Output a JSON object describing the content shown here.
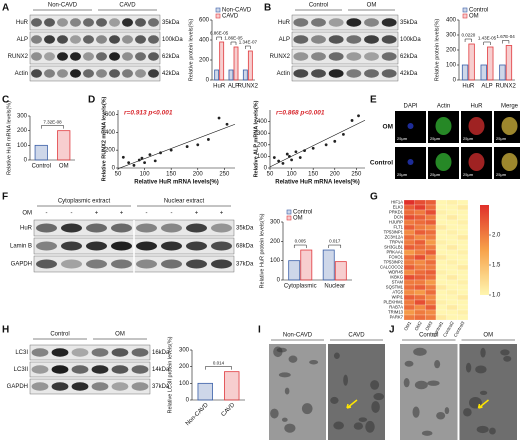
{
  "figure": {
    "A": {
      "letter": "A",
      "groups": [
        "Non-CAVD",
        "CAVD"
      ],
      "rows": [
        [
          "HuR",
          "35kDa"
        ],
        [
          "ALP",
          "100kDa"
        ],
        [
          "RUNX2",
          "62kDa"
        ],
        [
          "Actin",
          "42kDa"
        ]
      ]
    },
    "B": {
      "letter": "B",
      "groups": [
        "Control",
        "OM"
      ],
      "rows": [
        [
          "HuR",
          "35kDa"
        ],
        [
          "ALP",
          "100kDa"
        ],
        [
          "RUNX2",
          "62kDa"
        ],
        [
          "Actin",
          "42kDa"
        ]
      ]
    },
    "C": {
      "letter": "C"
    },
    "D": {
      "letter": "D"
    },
    "E": {
      "letter": "E",
      "columns": [
        "DAPI",
        "Actin",
        "HuR",
        "Merge"
      ],
      "rows": [
        "OM",
        "Control"
      ],
      "scale": "25μm"
    },
    "F": {
      "letter": "F",
      "groups": [
        "Cytoplasmic extract",
        "Nuclear extract"
      ],
      "om_label": "OM",
      "om_signs": [
        "-",
        "-",
        "+",
        "+",
        "-",
        "-",
        "+",
        "+"
      ],
      "rows": [
        [
          "HuR",
          "35kDa"
        ],
        [
          "Lamin B",
          "68kDa"
        ],
        [
          "GAPDH",
          "37kDa"
        ]
      ]
    },
    "G": {
      "letter": "G"
    },
    "H": {
      "letter": "H",
      "groups": [
        "Control",
        "OM"
      ],
      "rows": [
        [
          "LC3I",
          "16kDa"
        ],
        [
          "LC3II",
          "14kDa"
        ],
        [
          "GAPDH",
          "37kDa"
        ]
      ]
    },
    "I": {
      "letter": "I",
      "groups": [
        "Non-CAVD",
        "CAVD"
      ]
    },
    "J": {
      "letter": "J",
      "groups": [
        "Control",
        "OM"
      ]
    }
  },
  "chart_data": [
    {
      "type": "bar",
      "ylabel": "Relative protein levels(%)",
      "categories": [
        "HuR",
        "ALP",
        "RUNX2"
      ],
      "series": [
        {
          "name": "Non-CAVD",
          "color": "#3a5fa8",
          "values": [
            100,
            100,
            100
          ]
        },
        {
          "name": "CAVD",
          "color": "#e03a3e",
          "values": [
            380,
            330,
            290
          ]
        }
      ],
      "ylim": [
        0,
        600
      ],
      "yticks": [
        0,
        200,
        400,
        600
      ],
      "annotations": [
        "6.86E-05",
        "1.86E-05",
        "1.34E-07"
      ]
    },
    {
      "type": "bar",
      "ylabel": "Relative protein levels(%)",
      "categories": [
        "HuR",
        "ALP",
        "RUNX2"
      ],
      "series": [
        {
          "name": "Control",
          "color": "#3a5fa8",
          "values": [
            100,
            100,
            100
          ]
        },
        {
          "name": "OM",
          "color": "#e03a3e",
          "values": [
            240,
            220,
            230
          ]
        }
      ],
      "ylim": [
        0,
        400
      ],
      "yticks": [
        0,
        100,
        200,
        300,
        400
      ],
      "annotations": [
        "0.0220",
        "1.43E-05",
        "1.67E-04"
      ]
    },
    {
      "type": "bar",
      "ylabel": "Relative HuR mRNA levels(%)",
      "categories": [
        "Control",
        "OM"
      ],
      "values": [
        100,
        200
      ],
      "colors": [
        "#3a5fa8",
        "#e03a3e"
      ],
      "ylim": [
        0,
        300
      ],
      "yticks": [
        0,
        100,
        200,
        300
      ],
      "annotation": "7.32E-08"
    },
    {
      "type": "scatter",
      "xlabel": "Relative HuR mRNA levels(%)",
      "ylabel": "Relative RUNX2 mRNA levels(%)",
      "annotation": "r=0.913 p<0.001",
      "x": [
        60,
        70,
        80,
        90,
        95,
        100,
        110,
        120,
        130,
        150,
        180,
        200,
        220,
        240,
        255
      ],
      "values": [
        120,
        60,
        30,
        90,
        110,
        60,
        150,
        80,
        170,
        200,
        240,
        260,
        320,
        560,
        490
      ],
      "xlim": [
        50,
        270
      ],
      "ylim": [
        0,
        650
      ],
      "xticks": [
        50,
        100,
        150,
        200,
        250
      ],
      "yticks": [
        0,
        200,
        400,
        600
      ],
      "color": "#222222"
    },
    {
      "type": "scatter",
      "xlabel": "Relative HuR mRNA levels(%)",
      "ylabel": "Relative ALP mRNA levels(%)",
      "annotation": "r=0.868 p<0.001",
      "x": [
        60,
        70,
        80,
        90,
        95,
        100,
        110,
        120,
        130,
        150,
        180,
        200,
        220,
        240,
        255
      ],
      "values": [
        90,
        60,
        40,
        120,
        100,
        70,
        140,
        90,
        150,
        170,
        200,
        230,
        290,
        410,
        450
      ],
      "xlim": [
        50,
        270
      ],
      "ylim": [
        0,
        500
      ],
      "xticks": [
        50,
        100,
        150,
        200,
        250
      ],
      "yticks": [
        0,
        100,
        200,
        300,
        400
      ],
      "color": "#222222"
    },
    {
      "type": "bar",
      "ylabel": "Relative HuR protein levels(%)",
      "categories": [
        "Cytoplasmic",
        "Nuclear"
      ],
      "series": [
        {
          "name": "Control",
          "color": "#3a5fa8",
          "values": [
            100,
            155
          ]
        },
        {
          "name": "OM",
          "color": "#e03a3e",
          "values": [
            155,
            95
          ]
        }
      ],
      "ylim": [
        0,
        300
      ],
      "yticks": [
        0,
        100,
        200,
        300
      ],
      "annotations": [
        "0.005",
        "0.017"
      ]
    },
    {
      "type": "heatmap",
      "rows": [
        "HIF1A",
        "ELK3",
        "PRKD1",
        "DCN",
        "HJURP",
        "FLT1",
        "TP53INP1",
        "ZC3H12A",
        "TRPV4",
        "SH3GLB1",
        "PRKAA1",
        "FOXO1",
        "TP53INP2",
        "CALCOCO2",
        "WDR45",
        "IKBKG",
        "STAM",
        "SQSTM1",
        "ATG5",
        "WIPI1",
        "PLEKHM1",
        "RAB7A",
        "TRIM13",
        "PARK7"
      ],
      "columns": [
        "OM1",
        "OM2",
        "OM3",
        "Control1",
        "Control2",
        "Control3"
      ],
      "values": [
        [
          2.5,
          2.3,
          2.2,
          1.0,
          1.05,
          1.0
        ],
        [
          2.2,
          2.4,
          2.1,
          1.0,
          1.0,
          1.1
        ],
        [
          2.1,
          2.0,
          2.3,
          1.05,
          1.0,
          1.0
        ],
        [
          2.3,
          2.2,
          2.0,
          1.0,
          1.1,
          1.0
        ],
        [
          2.0,
          2.1,
          2.2,
          1.0,
          1.0,
          1.05
        ],
        [
          2.2,
          2.0,
          1.9,
          1.1,
          1.0,
          1.0
        ],
        [
          1.9,
          2.2,
          2.1,
          1.0,
          1.05,
          1.0
        ],
        [
          2.1,
          1.9,
          2.0,
          1.0,
          1.0,
          1.1
        ],
        [
          2.0,
          2.2,
          1.8,
          1.05,
          1.0,
          1.0
        ],
        [
          2.2,
          2.1,
          2.0,
          1.0,
          1.1,
          1.0
        ],
        [
          1.8,
          2.0,
          2.2,
          1.0,
          1.0,
          1.05
        ],
        [
          2.1,
          2.3,
          1.9,
          1.1,
          1.0,
          1.0
        ],
        [
          2.0,
          1.9,
          2.1,
          1.0,
          1.05,
          1.0
        ],
        [
          2.2,
          2.0,
          2.0,
          1.0,
          1.0,
          1.1
        ],
        [
          1.9,
          2.1,
          2.2,
          1.05,
          1.0,
          1.0
        ],
        [
          2.3,
          2.2,
          2.1,
          1.0,
          1.1,
          1.0
        ],
        [
          2.0,
          2.0,
          1.8,
          1.0,
          1.0,
          1.05
        ],
        [
          2.1,
          2.2,
          2.0,
          1.1,
          1.0,
          1.0
        ],
        [
          1.9,
          1.8,
          2.1,
          1.0,
          1.05,
          1.0
        ],
        [
          2.2,
          2.1,
          1.9,
          1.0,
          1.0,
          1.1
        ],
        [
          2.0,
          2.3,
          2.0,
          1.05,
          1.0,
          1.0
        ],
        [
          2.1,
          1.9,
          2.2,
          1.0,
          1.1,
          1.0
        ],
        [
          1.8,
          2.0,
          1.9,
          1.0,
          1.0,
          1.05
        ],
        [
          2.0,
          2.1,
          2.0,
          1.1,
          1.0,
          1.0
        ]
      ],
      "clim": [
        1,
        2.5
      ],
      "cticks": [
        {
          "value": 1,
          "label": "1.0"
        },
        1.5,
        {
          "value": 2,
          "label": "2.0"
        }
      ]
    },
    {
      "type": "bar",
      "ylabel": "Relative LC3II protein levels(%)",
      "categories": [
        "Non-CAVD",
        "CAVD"
      ],
      "values": [
        100,
        170
      ],
      "colors": [
        "#3a5fa8",
        "#e03a3e"
      ],
      "ylim": [
        0,
        300
      ],
      "yticks": [
        0,
        100,
        200,
        300
      ],
      "annotation": "0.014"
    }
  ]
}
